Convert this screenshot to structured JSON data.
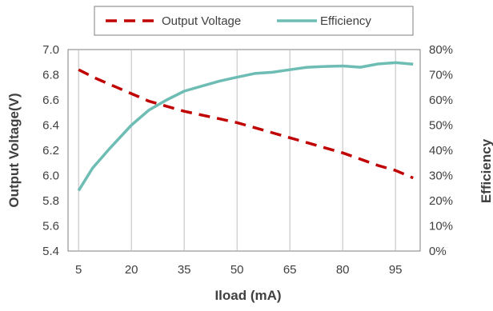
{
  "chart_data": {
    "type": "line",
    "xlabel": "Iload (mA)",
    "ylabel_left": "Output Voltage(V)",
    "ylabel_right": "Efficiency",
    "x_ticks": [
      "5",
      "20",
      "35",
      "50",
      "65",
      "80",
      "95"
    ],
    "x_range": [
      2,
      102
    ],
    "y_left_ticks": [
      "7.0",
      "6.8",
      "6.6",
      "6.4",
      "6.2",
      "6.0",
      "5.8",
      "5.6",
      "5.4"
    ],
    "y_left_range": [
      5.4,
      7.0
    ],
    "y_right_ticks": [
      "80%",
      "70%",
      "60%",
      "50%",
      "40%",
      "30%",
      "20%",
      "10%",
      "0%"
    ],
    "y_right_range": [
      0,
      80
    ],
    "grid": "vertical",
    "legend_position": "top",
    "series": [
      {
        "name": "Output Voltage",
        "axis": "left",
        "color": "#c00000",
        "dash": true,
        "points": [
          [
            5,
            6.84
          ],
          [
            10,
            6.77
          ],
          [
            15,
            6.71
          ],
          [
            20,
            6.65
          ],
          [
            25,
            6.59
          ],
          [
            30,
            6.55
          ],
          [
            35,
            6.51
          ],
          [
            40,
            6.48
          ],
          [
            45,
            6.45
          ],
          [
            50,
            6.42
          ],
          [
            55,
            6.38
          ],
          [
            60,
            6.34
          ],
          [
            65,
            6.3
          ],
          [
            70,
            6.26
          ],
          [
            75,
            6.22
          ],
          [
            80,
            6.18
          ],
          [
            85,
            6.13
          ],
          [
            90,
            6.08
          ],
          [
            95,
            6.04
          ],
          [
            100,
            5.98
          ]
        ]
      },
      {
        "name": "Efficiency",
        "axis": "right",
        "color": "#6dbdb4",
        "dash": false,
        "points": [
          [
            5,
            24
          ],
          [
            9,
            33
          ],
          [
            14,
            41
          ],
          [
            20,
            50
          ],
          [
            25,
            56
          ],
          [
            30,
            60
          ],
          [
            35,
            63.5
          ],
          [
            40,
            65.5
          ],
          [
            45,
            67.5
          ],
          [
            50,
            69
          ],
          [
            55,
            70.5
          ],
          [
            60,
            71
          ],
          [
            65,
            72
          ],
          [
            70,
            73
          ],
          [
            75,
            73.3
          ],
          [
            80,
            73.5
          ],
          [
            85,
            73
          ],
          [
            90,
            74.3
          ],
          [
            95,
            74.8
          ],
          [
            100,
            74.2
          ]
        ]
      }
    ]
  }
}
